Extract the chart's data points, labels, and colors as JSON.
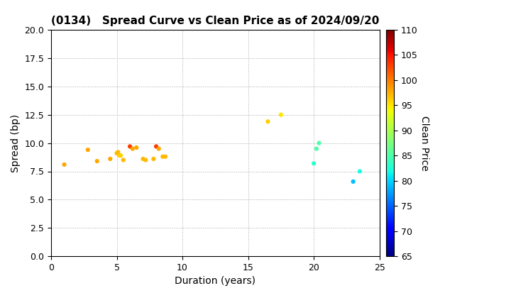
{
  "title": "(0134)   Spread Curve vs Clean Price as of 2024/09/20",
  "xlabel": "Duration (years)",
  "ylabel": "Spread (bp)",
  "colorbar_label": "Clean Price",
  "xlim": [
    0,
    25
  ],
  "ylim": [
    0.0,
    20.0
  ],
  "cmap_min": 65,
  "cmap_max": 110,
  "points": [
    {
      "duration": 1.0,
      "spread": 8.1,
      "price": 98
    },
    {
      "duration": 2.8,
      "spread": 9.4,
      "price": 98
    },
    {
      "duration": 3.5,
      "spread": 8.4,
      "price": 98
    },
    {
      "duration": 4.5,
      "spread": 8.6,
      "price": 98
    },
    {
      "duration": 5.0,
      "spread": 9.1,
      "price": 97
    },
    {
      "duration": 5.1,
      "spread": 9.2,
      "price": 97
    },
    {
      "duration": 5.2,
      "spread": 8.9,
      "price": 96
    },
    {
      "duration": 5.3,
      "spread": 8.9,
      "price": 96
    },
    {
      "duration": 5.5,
      "spread": 8.5,
      "price": 97
    },
    {
      "duration": 6.0,
      "spread": 9.7,
      "price": 103
    },
    {
      "duration": 6.2,
      "spread": 9.5,
      "price": 98
    },
    {
      "duration": 6.5,
      "spread": 9.6,
      "price": 98
    },
    {
      "duration": 7.0,
      "spread": 8.6,
      "price": 97
    },
    {
      "duration": 7.2,
      "spread": 8.5,
      "price": 97
    },
    {
      "duration": 7.8,
      "spread": 8.6,
      "price": 97
    },
    {
      "duration": 8.0,
      "spread": 9.7,
      "price": 103
    },
    {
      "duration": 8.2,
      "spread": 9.5,
      "price": 98
    },
    {
      "duration": 8.5,
      "spread": 8.8,
      "price": 97
    },
    {
      "duration": 8.7,
      "spread": 8.8,
      "price": 97
    },
    {
      "duration": 16.5,
      "spread": 11.9,
      "price": 96
    },
    {
      "duration": 17.5,
      "spread": 12.5,
      "price": 95
    },
    {
      "duration": 20.0,
      "spread": 8.2,
      "price": 83
    },
    {
      "duration": 20.2,
      "spread": 9.5,
      "price": 85
    },
    {
      "duration": 20.4,
      "spread": 10.0,
      "price": 85
    },
    {
      "duration": 23.0,
      "spread": 6.6,
      "price": 79
    },
    {
      "duration": 23.5,
      "spread": 7.5,
      "price": 82
    }
  ],
  "xticks": [
    0,
    5,
    10,
    15,
    20,
    25
  ],
  "yticks": [
    0.0,
    2.5,
    5.0,
    7.5,
    10.0,
    12.5,
    15.0,
    17.5,
    20.0
  ],
  "colorbar_ticks": [
    65,
    70,
    75,
    80,
    85,
    90,
    95,
    100,
    105,
    110
  ],
  "background_color": "#ffffff",
  "grid_color": "#aaaaaa",
  "marker_size": 20,
  "title_fontsize": 11,
  "axis_fontsize": 10,
  "tick_fontsize": 9
}
